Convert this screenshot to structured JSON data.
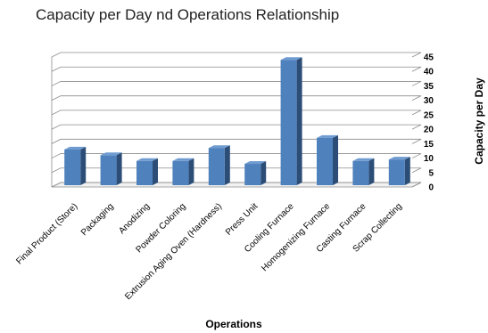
{
  "chart_data": {
    "type": "bar",
    "title": "Capacity per Day nd Operations Relationship",
    "xlabel": "Operations",
    "ylabel": "Capacity per Day",
    "ylim": [
      0,
      45
    ],
    "yticks": [
      0,
      5,
      10,
      15,
      20,
      25,
      30,
      35,
      40,
      45
    ],
    "grid": true,
    "style": "3d-column",
    "bar_color": "#4f81bd",
    "categories": [
      "Final Product (Store)",
      "Packaging",
      "Anodizing",
      "Powder Coloring",
      "Extrusion Aging Oven (Hardness)",
      "Press Unit",
      "Cooling Furnace",
      "Homogenizing Furnace",
      "Casting Furnace",
      "Scrap Collecting"
    ],
    "values": [
      13,
      11,
      9,
      9,
      13.5,
      8,
      44,
      17,
      9,
      9.5
    ]
  }
}
